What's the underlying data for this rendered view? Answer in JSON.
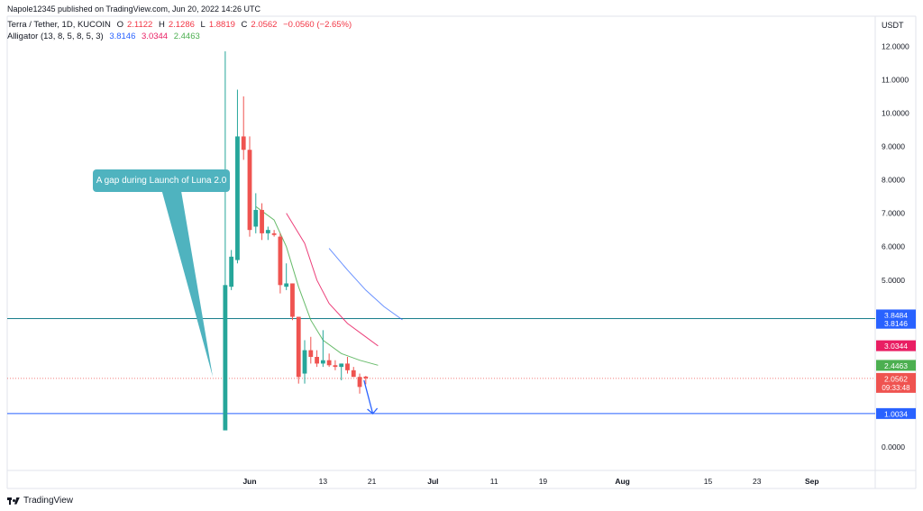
{
  "header": {
    "published": "Napole12345 published on TradingView.com, Jun 20, 2022 14:26 UTC",
    "symbol": "Terra / Tether, 1D, KUCOIN",
    "ohlc": {
      "o_label": "O",
      "o": "2.1122",
      "h_label": "H",
      "h": "2.1286",
      "l_label": "L",
      "l": "1.8819",
      "c_label": "C",
      "c": "2.0562",
      "change": "−0.0560 (−2.65%)"
    },
    "indicator": "Alligator (13, 8, 5, 8, 5, 3)",
    "indicator_values": [
      "3.8146",
      "3.0344",
      "2.4463"
    ]
  },
  "annotation": "A gap during Launch of Luna 2.0",
  "footer": {
    "brand": "TradingView"
  },
  "colors": {
    "up": "#26a69a",
    "down": "#ef5350",
    "jaw": "#2962ff",
    "teeth": "#e91e63",
    "lips": "#4caf50",
    "callout": "#4fb3bf"
  },
  "chart_data": {
    "type": "candlestick",
    "currency": "USDT",
    "y_ticks": [
      "0.0000",
      "1.0000",
      "2.0000",
      "3.0000",
      "4.0000",
      "5.0000",
      "6.0000",
      "7.0000",
      "8.0000",
      "9.0000",
      "10.0000",
      "11.0000",
      "12.0000"
    ],
    "ylim": [
      -0.7,
      12.9
    ],
    "x_ticks": [
      {
        "label": "Jun",
        "date": "2022-06-01",
        "bold": true
      },
      {
        "label": "13",
        "date": "2022-06-13"
      },
      {
        "label": "21",
        "date": "2022-06-21"
      },
      {
        "label": "Jul",
        "date": "2022-07-01",
        "bold": true
      },
      {
        "label": "11",
        "date": "2022-07-11"
      },
      {
        "label": "19",
        "date": "2022-07-19"
      },
      {
        "label": "Aug",
        "date": "2022-08-01",
        "bold": true
      },
      {
        "label": "15",
        "date": "2022-08-15"
      },
      {
        "label": "23",
        "date": "2022-08-23"
      },
      {
        "label": "Sep",
        "date": "2022-09-01",
        "bold": true
      }
    ],
    "candles": [
      {
        "d": "2022-05-28",
        "o": 0.5,
        "h": 11.85,
        "l": 0.5,
        "c": 4.85
      },
      {
        "d": "2022-05-29",
        "o": 4.8,
        "h": 5.9,
        "l": 4.7,
        "c": 5.7
      },
      {
        "d": "2022-05-30",
        "o": 5.6,
        "h": 10.7,
        "l": 5.5,
        "c": 9.3
      },
      {
        "d": "2022-05-31",
        "o": 9.3,
        "h": 10.5,
        "l": 8.6,
        "c": 8.9
      },
      {
        "d": "2022-06-01",
        "o": 8.9,
        "h": 9.3,
        "l": 6.3,
        "c": 6.5
      },
      {
        "d": "2022-06-02",
        "o": 6.6,
        "h": 7.6,
        "l": 6.4,
        "c": 7.1
      },
      {
        "d": "2022-06-03",
        "o": 7.1,
        "h": 7.3,
        "l": 6.2,
        "c": 6.4
      },
      {
        "d": "2022-06-04",
        "o": 6.4,
        "h": 6.6,
        "l": 6.2,
        "c": 6.5
      },
      {
        "d": "2022-06-05",
        "o": 6.4,
        "h": 6.5,
        "l": 6.3,
        "c": 6.35
      },
      {
        "d": "2022-06-06",
        "o": 6.3,
        "h": 6.4,
        "l": 4.6,
        "c": 4.85
      },
      {
        "d": "2022-06-07",
        "o": 4.8,
        "h": 5.5,
        "l": 4.7,
        "c": 4.9
      },
      {
        "d": "2022-06-08",
        "o": 4.9,
        "h": 4.9,
        "l": 3.8,
        "c": 3.9
      },
      {
        "d": "2022-06-09",
        "o": 3.9,
        "h": 3.9,
        "l": 1.9,
        "c": 2.1
      },
      {
        "d": "2022-06-10",
        "o": 2.2,
        "h": 3.2,
        "l": 1.9,
        "c": 2.9
      },
      {
        "d": "2022-06-11",
        "o": 2.9,
        "h": 3.3,
        "l": 2.5,
        "c": 2.7
      },
      {
        "d": "2022-06-12",
        "o": 2.7,
        "h": 2.9,
        "l": 2.4,
        "c": 2.5
      },
      {
        "d": "2022-06-13",
        "o": 2.5,
        "h": 3.5,
        "l": 2.4,
        "c": 2.6
      },
      {
        "d": "2022-06-14",
        "o": 2.6,
        "h": 2.8,
        "l": 2.4,
        "c": 2.45
      },
      {
        "d": "2022-06-15",
        "o": 2.45,
        "h": 2.6,
        "l": 2.3,
        "c": 2.4
      },
      {
        "d": "2022-06-16",
        "o": 2.4,
        "h": 2.5,
        "l": 2.0,
        "c": 2.5
      },
      {
        "d": "2022-06-17",
        "o": 2.5,
        "h": 2.7,
        "l": 2.2,
        "c": 2.3
      },
      {
        "d": "2022-06-18",
        "o": 2.3,
        "h": 2.4,
        "l": 2.1,
        "c": 2.1
      },
      {
        "d": "2022-06-19",
        "o": 2.1,
        "h": 2.2,
        "l": 1.6,
        "c": 1.8
      },
      {
        "d": "2022-06-20",
        "o": 2.11,
        "h": 2.13,
        "l": 1.88,
        "c": 2.06
      }
    ],
    "alligator": {
      "jaw": [
        [
          "2022-06-14",
          5.95
        ],
        [
          "2022-06-17",
          5.3
        ],
        [
          "2022-06-20",
          4.7
        ],
        [
          "2022-06-23",
          4.2
        ],
        [
          "2022-06-26",
          3.81
        ]
      ],
      "teeth": [
        [
          "2022-06-07",
          7.0
        ],
        [
          "2022-06-10",
          6.1
        ],
        [
          "2022-06-12",
          5.0
        ],
        [
          "2022-06-14",
          4.3
        ],
        [
          "2022-06-17",
          3.7
        ],
        [
          "2022-06-20",
          3.3
        ],
        [
          "2022-06-22",
          3.03
        ]
      ],
      "lips": [
        [
          "2022-06-02",
          7.2
        ],
        [
          "2022-06-05",
          6.8
        ],
        [
          "2022-06-07",
          6.0
        ],
        [
          "2022-06-09",
          4.8
        ],
        [
          "2022-06-11",
          3.8
        ],
        [
          "2022-06-13",
          3.2
        ],
        [
          "2022-06-16",
          2.8
        ],
        [
          "2022-06-19",
          2.6
        ],
        [
          "2022-06-22",
          2.45
        ]
      ]
    },
    "hlines": [
      {
        "value": 3.8484,
        "color": "#1a7f8c",
        "label": "3.8484",
        "label_color": "#2962ff"
      },
      {
        "value": 1.0034,
        "color": "#2962ff",
        "label": "1.0034",
        "label_color": "#2962ff"
      }
    ],
    "price_labels": [
      {
        "value": 3.8146,
        "label": "3.8146",
        "color": "#2962ff"
      },
      {
        "value": 3.0344,
        "label": "3.0344",
        "color": "#e91e63"
      },
      {
        "value": 2.4463,
        "label": "2.4463",
        "color": "#4caf50"
      },
      {
        "value": 2.0562,
        "label": "2.0562",
        "sub": "09:33:48",
        "color": "#ef5350"
      }
    ],
    "current_price": 2.0562,
    "arrow": {
      "from": [
        "2022-06-20",
        2.0
      ],
      "to": [
        "2022-06-21",
        1.0
      ]
    }
  }
}
